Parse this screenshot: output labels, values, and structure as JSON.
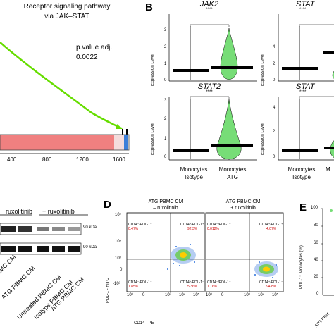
{
  "panel_a": {
    "title_line1": "Receptor signaling pathway",
    "title_line2": "via JAK–STAT",
    "pvalue_label": "p.value adj.",
    "pvalue": "0.0022",
    "x_ticks": [
      "400",
      "800",
      "1200",
      "1600"
    ],
    "enrichment_color": "#66dd00",
    "bar_color_main": "#f08080",
    "bar_color_end": "#3d7fd9"
  },
  "panel_b": {
    "letter": "B",
    "ylabel": "Expression Level",
    "sig": "****",
    "genes": [
      "JAK2",
      "STAT",
      "STAT2",
      "STAT"
    ],
    "tick_0": "0",
    "tick_1": "1",
    "tick_2": "2",
    "tick_3": "3",
    "tick_4": "4",
    "x_labels_left": [
      "Monocytes",
      "Isotype"
    ],
    "x_labels_right": [
      "Monocytes",
      "ATG"
    ],
    "x_labels_left2": [
      "Monocytes",
      "Isotype"
    ],
    "x_labels_right2": [
      "M"
    ],
    "violin_color": "#77dd77"
  },
  "panel_c": {
    "header_left": "ruxolitinib",
    "header_right": "+ ruxolitinib",
    "kda_1": "90 kDa",
    "kda_2": "90 kDa",
    "lanes": [
      "...PBMC CM",
      "ATG PBMC CM",
      "Untreated PBMC CM",
      "Isotype PBMC CM",
      "ATG PBMC CM"
    ]
  },
  "panel_d": {
    "letter": "D",
    "plot1_title1": "ATG PBMC CM",
    "plot1_title2": "– ruxolitinib",
    "plot2_title1": "ATG PBMC CM",
    "plot2_title2": "+ ruxolitinib",
    "ylabel": "PDL-1 - FITC",
    "xlabel": "CD14 - PE",
    "p1_q_ul": "CD14⁻/PDL-1⁺",
    "p1_q_ul_val": "0.47%",
    "p1_q_ur": "CD14⁺/PDL-1⁺",
    "p1_q_ur_val": "92.3%",
    "p1_q_ll": "CD14⁻/PDL-1⁻",
    "p1_q_ll_val": "1.85%",
    "p1_q_lr": "CD14⁺/PDL-1⁻",
    "p1_q_lr_val": "5.36%",
    "p2_q_ul": "CD14⁻/PDL-1⁺",
    "p2_q_ul_val": "0.012%",
    "p2_q_ur": "CD14⁺/PDL-1⁺",
    "p2_q_ur_val": "4.07%",
    "p2_q_ll": "CD14⁻/PDL-1⁻",
    "p2_q_ll_val": "1.16%",
    "p2_q_lr": "CD14⁺/PDL-1⁻",
    "p2_q_lr_val": "94.8%",
    "y_ticks": [
      "10⁵",
      "10⁴",
      "10³",
      "0",
      "-10³"
    ],
    "x_ticks": [
      "-10³",
      "0",
      "10³",
      "10⁴",
      "10⁵"
    ]
  },
  "panel_e": {
    "letter": "E",
    "ylabel": "PDL-1⁺ Monocytes (%)",
    "y_ticks": [
      "100",
      "80",
      "60",
      "40",
      "20",
      "0"
    ],
    "x_tick": "ATG PBM"
  }
}
